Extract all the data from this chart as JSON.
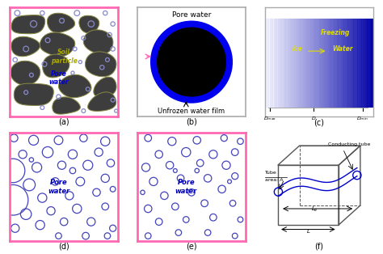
{
  "fig_width": 4.74,
  "fig_height": 3.14,
  "bg_white": "#ffffff",
  "panel_border_pink": "#ff69b4",
  "soil_particle_color": "#3d3d3d",
  "soil_edge_color": "#888844",
  "pore_circle_color_a": "#8888cc",
  "blue_dark": "#0000cc",
  "blue_ring": "#0000ee",
  "yellow_text": "#aaaa00",
  "blue_text": "#0000cc",
  "label_fontsize": 7,
  "soil_particles": [
    [
      [
        0.3,
        8.8
      ],
      [
        1.8,
        9.3
      ],
      [
        3.2,
        9.0
      ],
      [
        3.0,
        8.0
      ],
      [
        1.5,
        7.6
      ],
      [
        0.2,
        8.0
      ]
    ],
    [
      [
        3.5,
        9.0
      ],
      [
        5.5,
        9.2
      ],
      [
        6.0,
        8.5
      ],
      [
        5.0,
        7.8
      ],
      [
        3.8,
        7.9
      ]
    ],
    [
      [
        6.5,
        9.0
      ],
      [
        8.2,
        8.8
      ],
      [
        8.0,
        8.0
      ],
      [
        6.8,
        7.8
      ]
    ],
    [
      [
        0.2,
        6.8
      ],
      [
        2.0,
        7.2
      ],
      [
        2.8,
        6.5
      ],
      [
        2.2,
        5.8
      ],
      [
        0.3,
        5.9
      ]
    ],
    [
      [
        3.0,
        7.2
      ],
      [
        5.2,
        7.5
      ],
      [
        6.0,
        6.8
      ],
      [
        5.5,
        5.8
      ],
      [
        3.5,
        5.8
      ],
      [
        2.8,
        6.4
      ]
    ],
    [
      [
        7.0,
        7.5
      ],
      [
        8.8,
        7.8
      ],
      [
        9.5,
        7.0
      ],
      [
        9.2,
        6.0
      ],
      [
        7.5,
        6.0
      ],
      [
        6.8,
        6.8
      ]
    ],
    [
      [
        0.2,
        4.5
      ],
      [
        2.0,
        5.0
      ],
      [
        2.8,
        4.2
      ],
      [
        2.5,
        3.3
      ],
      [
        0.8,
        3.0
      ],
      [
        0.1,
        3.8
      ]
    ],
    [
      [
        3.2,
        5.2
      ],
      [
        5.0,
        5.5
      ],
      [
        5.5,
        4.8
      ],
      [
        4.8,
        3.8
      ],
      [
        3.3,
        3.8
      ]
    ],
    [
      [
        7.2,
        5.5
      ],
      [
        9.0,
        5.8
      ],
      [
        9.8,
        5.0
      ],
      [
        9.5,
        4.0
      ],
      [
        7.8,
        3.8
      ],
      [
        7.0,
        4.5
      ]
    ],
    [
      [
        0.5,
        2.5
      ],
      [
        2.5,
        3.0
      ],
      [
        4.0,
        2.5
      ],
      [
        3.8,
        1.5
      ],
      [
        2.0,
        1.0
      ],
      [
        0.5,
        1.5
      ]
    ],
    [
      [
        5.0,
        3.5
      ],
      [
        7.0,
        3.5
      ],
      [
        7.5,
        2.5
      ],
      [
        6.5,
        1.8
      ],
      [
        5.0,
        2.0
      ],
      [
        4.5,
        2.8
      ]
    ],
    [
      [
        8.0,
        3.0
      ],
      [
        9.5,
        3.5
      ],
      [
        9.8,
        2.5
      ],
      [
        9.0,
        1.8
      ],
      [
        7.8,
        2.0
      ]
    ],
    [
      [
        4.0,
        1.2
      ],
      [
        6.0,
        1.5
      ],
      [
        6.5,
        0.8
      ],
      [
        5.5,
        0.3
      ],
      [
        4.0,
        0.5
      ]
    ],
    [
      [
        7.5,
        1.5
      ],
      [
        9.5,
        2.0
      ],
      [
        9.8,
        1.2
      ],
      [
        8.5,
        0.5
      ],
      [
        7.2,
        0.8
      ]
    ]
  ],
  "pore_circles_a": [
    [
      0.7,
      9.5,
      0.25
    ],
    [
      3.0,
      9.5,
      0.2
    ],
    [
      6.2,
      9.5,
      0.25
    ],
    [
      8.8,
      9.5,
      0.2
    ],
    [
      2.2,
      8.5,
      0.3
    ],
    [
      4.8,
      8.8,
      0.22
    ],
    [
      7.5,
      8.5,
      0.28
    ],
    [
      9.5,
      8.5,
      0.2
    ],
    [
      3.5,
      7.0,
      0.22
    ],
    [
      6.8,
      7.2,
      0.18
    ],
    [
      9.2,
      7.5,
      0.2
    ],
    [
      1.5,
      6.2,
      0.25
    ],
    [
      6.0,
      6.2,
      0.18
    ],
    [
      9.5,
      6.2,
      0.2
    ],
    [
      0.5,
      5.2,
      0.2
    ],
    [
      3.2,
      4.8,
      0.22
    ],
    [
      6.5,
      5.0,
      0.15
    ],
    [
      9.0,
      5.2,
      0.18
    ],
    [
      2.0,
      3.8,
      0.18
    ],
    [
      5.8,
      4.0,
      0.15
    ],
    [
      8.5,
      4.5,
      0.2
    ],
    [
      1.5,
      2.2,
      0.18
    ],
    [
      4.5,
      1.8,
      0.2
    ],
    [
      7.2,
      2.5,
      0.18
    ],
    [
      9.5,
      1.5,
      0.18
    ],
    [
      3.0,
      0.8,
      0.18
    ],
    [
      6.8,
      0.5,
      0.18
    ],
    [
      9.8,
      0.5,
      0.15
    ]
  ],
  "pore_circles_d": [
    [
      0.4,
      9.5,
      0.35
    ],
    [
      2.2,
      9.3,
      0.45
    ],
    [
      4.5,
      9.3,
      0.4
    ],
    [
      6.8,
      9.5,
      0.35
    ],
    [
      8.8,
      9.2,
      0.42
    ],
    [
      1.2,
      8.0,
      0.38
    ],
    [
      3.5,
      8.2,
      0.5
    ],
    [
      5.8,
      8.0,
      0.42
    ],
    [
      8.2,
      8.2,
      0.38
    ],
    [
      0.3,
      6.5,
      1.1
    ],
    [
      2.5,
      6.8,
      0.45
    ],
    [
      4.8,
      7.0,
      0.38
    ],
    [
      7.2,
      7.0,
      0.45
    ],
    [
      9.3,
      7.2,
      0.35
    ],
    [
      1.8,
      5.2,
      0.55
    ],
    [
      4.2,
      5.5,
      0.35
    ],
    [
      6.5,
      5.5,
      0.4
    ],
    [
      8.8,
      5.8,
      0.38
    ],
    [
      0.3,
      3.8,
      1.4
    ],
    [
      3.0,
      4.0,
      0.42
    ],
    [
      5.5,
      4.2,
      0.38
    ],
    [
      8.0,
      4.5,
      0.35
    ],
    [
      1.5,
      2.5,
      0.5
    ],
    [
      3.8,
      2.8,
      0.38
    ],
    [
      6.2,
      3.0,
      0.42
    ],
    [
      8.8,
      3.2,
      0.32
    ],
    [
      0.5,
      1.2,
      0.38
    ],
    [
      2.8,
      1.5,
      0.42
    ],
    [
      5.0,
      1.8,
      0.35
    ],
    [
      7.5,
      1.8,
      0.38
    ],
    [
      9.5,
      1.2,
      0.3
    ],
    [
      4.5,
      0.5,
      0.28
    ],
    [
      7.0,
      0.5,
      0.32
    ],
    [
      9.0,
      0.5,
      0.28
    ],
    [
      5.8,
      6.5,
      0.28
    ],
    [
      9.5,
      4.8,
      0.25
    ],
    [
      2.0,
      7.5,
      0.2
    ]
  ],
  "pore_circles_e": [
    [
      1.0,
      9.5,
      0.32
    ],
    [
      3.2,
      9.2,
      0.38
    ],
    [
      5.5,
      9.3,
      0.35
    ],
    [
      8.0,
      9.5,
      0.3
    ],
    [
      9.5,
      9.2,
      0.28
    ],
    [
      2.0,
      8.0,
      0.35
    ],
    [
      4.5,
      8.2,
      0.42
    ],
    [
      7.0,
      8.0,
      0.38
    ],
    [
      9.0,
      8.2,
      0.32
    ],
    [
      0.8,
      6.8,
      0.38
    ],
    [
      3.0,
      7.0,
      0.35
    ],
    [
      5.8,
      7.2,
      0.32
    ],
    [
      8.2,
      7.0,
      0.38
    ],
    [
      1.5,
      5.5,
      0.38
    ],
    [
      4.0,
      5.8,
      0.32
    ],
    [
      6.5,
      5.8,
      0.35
    ],
    [
      9.0,
      6.0,
      0.3
    ],
    [
      2.5,
      4.2,
      0.35
    ],
    [
      5.0,
      4.5,
      0.32
    ],
    [
      7.8,
      4.8,
      0.35
    ],
    [
      1.0,
      3.0,
      0.35
    ],
    [
      3.5,
      3.2,
      0.32
    ],
    [
      6.2,
      3.5,
      0.32
    ],
    [
      8.8,
      3.5,
      0.28
    ],
    [
      2.0,
      1.8,
      0.32
    ],
    [
      4.5,
      2.0,
      0.28
    ],
    [
      7.0,
      2.2,
      0.32
    ],
    [
      9.5,
      2.0,
      0.25
    ],
    [
      1.0,
      0.5,
      0.28
    ],
    [
      3.8,
      0.8,
      0.28
    ],
    [
      6.5,
      0.8,
      0.28
    ],
    [
      9.0,
      0.5,
      0.25
    ],
    [
      5.5,
      6.5,
      0.2
    ],
    [
      8.5,
      5.5,
      0.18
    ],
    [
      3.5,
      6.5,
      0.18
    ],
    [
      0.5,
      4.5,
      0.2
    ]
  ]
}
